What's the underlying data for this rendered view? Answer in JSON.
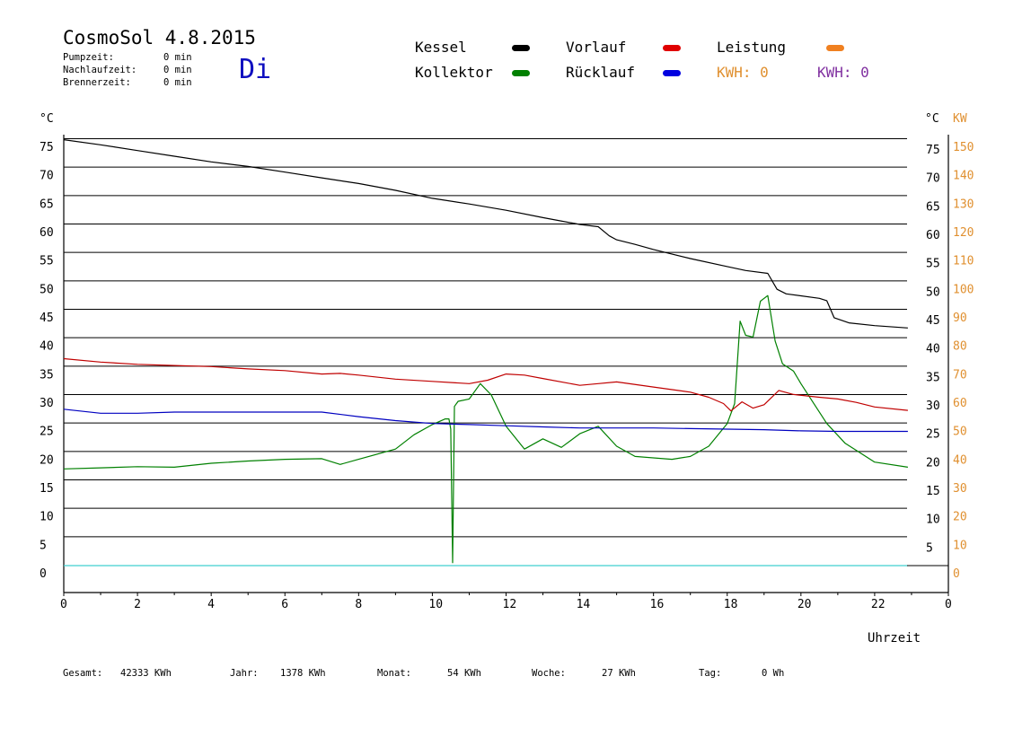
{
  "header": {
    "title": "CosmoSol 4.8.2015",
    "day": "Di",
    "pumpzeit_label": "Pumpzeit:",
    "pumpzeit_value": "0 min",
    "nachlaufzeit_label": "Nachlaufzeit:",
    "nachlaufzeit_value": "0 min",
    "brennerzeit_label": "Brennerzeit:",
    "brennerzeit_value": "0 min"
  },
  "legend": {
    "kessel": "Kessel",
    "kollektor": "Kollektor",
    "vorlauf": "Vorlauf",
    "ruecklauf": "Rücklauf",
    "leistung": "Leistung",
    "kwh1": "KWH: 0",
    "kwh2": "KWH: 0"
  },
  "colors": {
    "kessel": "#000000",
    "kollektor": "#008000",
    "vorlauf": "#c00000",
    "ruecklauf": "#0000c0",
    "leistung": "#f08020",
    "kwh1": "#e09030",
    "kwh2": "#8030a0",
    "baseline": "#40d0d0",
    "right_kw_axis": "#e09030"
  },
  "footer": {
    "gesamt_label": "Gesamt:",
    "gesamt_value": "42333 KWh",
    "jahr_label": "Jahr:",
    "jahr_value": "1378 KWh",
    "monat_label": "Monat:",
    "monat_value": "54 KWh",
    "woche_label": "Woche:",
    "woche_value": "27 KWh",
    "tag_label": "Tag:",
    "tag_value": "0 Wh"
  },
  "chart_data": {
    "type": "line",
    "xlabel": "Uhrzeit",
    "ylabel_left": "°C",
    "ylabel_right": "°C",
    "ylabel_right2": "KW",
    "xlim": [
      0,
      24
    ],
    "ylim": [
      0,
      75
    ],
    "x_ticks": [
      "0",
      "2",
      "4",
      "6",
      "8",
      "10",
      "12",
      "14",
      "16",
      "18",
      "20",
      "22",
      "0"
    ],
    "y_ticks_left": [
      "75",
      "70",
      "65",
      "60",
      "55",
      "50",
      "45",
      "40",
      "35",
      "30",
      "25",
      "20",
      "15",
      "10",
      "5",
      "0"
    ],
    "y_ticks_right": [
      "75",
      "70",
      "65",
      "60",
      "55",
      "50",
      "45",
      "40",
      "35",
      "30",
      "25",
      "20",
      "15",
      "10",
      "5"
    ],
    "kw_ticks": [
      "150",
      "140",
      "130",
      "120",
      "110",
      "100",
      "90",
      "80",
      "70",
      "60",
      "50",
      "40",
      "30",
      "20",
      "10",
      "0"
    ],
    "grid": true,
    "series": [
      {
        "name": "Kessel",
        "color": "#000000",
        "points": [
          [
            0,
            74.9
          ],
          [
            1,
            74
          ],
          [
            2,
            73
          ],
          [
            3,
            72
          ],
          [
            4,
            71
          ],
          [
            5,
            70.2
          ],
          [
            6,
            69.2
          ],
          [
            7,
            68.2
          ],
          [
            8,
            67.2
          ],
          [
            9,
            66
          ],
          [
            10,
            64.6
          ],
          [
            11,
            63.6
          ],
          [
            12,
            62.5
          ],
          [
            13,
            61.2
          ],
          [
            14,
            60
          ],
          [
            14.5,
            59.6
          ],
          [
            14.8,
            58
          ],
          [
            15,
            57.3
          ],
          [
            15.5,
            56.5
          ],
          [
            16,
            55.6
          ],
          [
            17,
            54
          ],
          [
            18,
            52.6
          ],
          [
            18.5,
            51.9
          ],
          [
            19.1,
            51.4
          ],
          [
            19.35,
            48.6
          ],
          [
            19.6,
            47.8
          ],
          [
            20.5,
            47
          ],
          [
            20.7,
            46.6
          ],
          [
            20.9,
            43.6
          ],
          [
            21.3,
            42.7
          ],
          [
            22,
            42.2
          ],
          [
            22.9,
            41.8
          ]
        ]
      },
      {
        "name": "Kollektor",
        "color": "#008000",
        "points": [
          [
            0,
            17
          ],
          [
            1,
            17.2
          ],
          [
            2,
            17.4
          ],
          [
            3,
            17.3
          ],
          [
            4,
            18
          ],
          [
            5,
            18.4
          ],
          [
            6,
            18.7
          ],
          [
            7,
            18.8
          ],
          [
            7.5,
            17.8
          ],
          [
            8,
            18.7
          ],
          [
            9,
            20.5
          ],
          [
            9.5,
            23
          ],
          [
            10,
            24.8
          ],
          [
            10.35,
            25.8
          ],
          [
            10.45,
            25.8
          ],
          [
            10.5,
            24
          ],
          [
            10.55,
            0.5
          ],
          [
            10.6,
            28
          ],
          [
            10.7,
            28.9
          ],
          [
            11,
            29.3
          ],
          [
            11.3,
            32
          ],
          [
            11.6,
            30
          ],
          [
            12,
            24.5
          ],
          [
            12.5,
            20.5
          ],
          [
            13,
            22.3
          ],
          [
            13.5,
            20.8
          ],
          [
            14,
            23.2
          ],
          [
            14.5,
            24.5
          ],
          [
            15,
            21
          ],
          [
            15.5,
            19.2
          ],
          [
            16.5,
            18.7
          ],
          [
            17,
            19.2
          ],
          [
            17.5,
            21
          ],
          [
            18,
            25
          ],
          [
            18.2,
            28.5
          ],
          [
            18.35,
            43
          ],
          [
            18.5,
            40.5
          ],
          [
            18.7,
            40.2
          ],
          [
            18.9,
            46.5
          ],
          [
            19.1,
            47.5
          ],
          [
            19.3,
            39.5
          ],
          [
            19.5,
            35.5
          ],
          [
            19.8,
            34.2
          ],
          [
            20,
            32
          ],
          [
            20.3,
            29
          ],
          [
            20.7,
            25
          ],
          [
            21.2,
            21.5
          ],
          [
            22,
            18.2
          ],
          [
            22.9,
            17.3
          ]
        ]
      },
      {
        "name": "Vorlauf",
        "color": "#c00000",
        "points": [
          [
            0,
            36.4
          ],
          [
            1,
            35.8
          ],
          [
            2,
            35.4
          ],
          [
            3,
            35.2
          ],
          [
            4,
            35
          ],
          [
            5,
            34.6
          ],
          [
            6,
            34.3
          ],
          [
            7,
            33.7
          ],
          [
            7.5,
            33.8
          ],
          [
            8,
            33.5
          ],
          [
            9,
            32.8
          ],
          [
            10,
            32.4
          ],
          [
            11,
            32
          ],
          [
            11.5,
            32.6
          ],
          [
            12,
            33.7
          ],
          [
            12.5,
            33.5
          ],
          [
            13,
            32.9
          ],
          [
            14,
            31.7
          ],
          [
            14.5,
            32
          ],
          [
            15,
            32.3
          ],
          [
            16,
            31.4
          ],
          [
            17,
            30.5
          ],
          [
            17.5,
            29.6
          ],
          [
            17.9,
            28.5
          ],
          [
            18.1,
            27.2
          ],
          [
            18.4,
            28.8
          ],
          [
            18.7,
            27.7
          ],
          [
            19,
            28.3
          ],
          [
            19.4,
            30.8
          ],
          [
            19.8,
            30.1
          ],
          [
            20.5,
            29.6
          ],
          [
            21,
            29.3
          ],
          [
            21.5,
            28.7
          ],
          [
            22,
            27.9
          ],
          [
            22.9,
            27.3
          ]
        ]
      },
      {
        "name": "Rücklauf",
        "color": "#0000c0",
        "points": [
          [
            0,
            27.5
          ],
          [
            1,
            26.8
          ],
          [
            2,
            26.8
          ],
          [
            3,
            27
          ],
          [
            4,
            27
          ],
          [
            5,
            27
          ],
          [
            6,
            27
          ],
          [
            7,
            27
          ],
          [
            8,
            26.2
          ],
          [
            9,
            25.5
          ],
          [
            10,
            25
          ],
          [
            11,
            24.8
          ],
          [
            12,
            24.6
          ],
          [
            13,
            24.4
          ],
          [
            14,
            24.2
          ],
          [
            15,
            24.2
          ],
          [
            16,
            24.2
          ],
          [
            17,
            24.1
          ],
          [
            18,
            24
          ],
          [
            19,
            23.9
          ],
          [
            20,
            23.7
          ],
          [
            21,
            23.6
          ],
          [
            22,
            23.6
          ],
          [
            22.9,
            23.6
          ]
        ]
      },
      {
        "name": "Leistung",
        "color": "#40d0d0",
        "points": [
          [
            0,
            0
          ],
          [
            22.9,
            0
          ]
        ]
      }
    ]
  }
}
